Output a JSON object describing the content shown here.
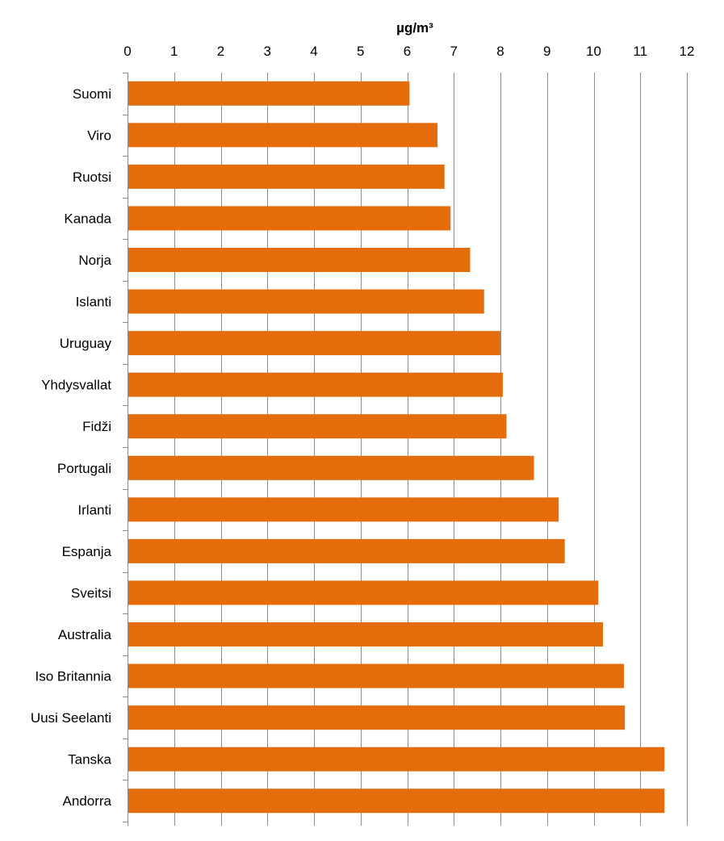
{
  "chart_data": {
    "type": "bar",
    "orientation": "horizontal",
    "xlabel": "µg/m³",
    "xlabel_position": "top",
    "xlim": [
      0,
      12
    ],
    "xticks": [
      "0",
      "1",
      "2",
      "3",
      "4",
      "5",
      "6",
      "7",
      "8",
      "9",
      "10",
      "11",
      "12"
    ],
    "grid": true,
    "bar_color": "#e46c0a",
    "categories": [
      "Suomi",
      "Viro",
      "Ruotsi",
      "Kanada",
      "Norja",
      "Islanti",
      "Uruguay",
      "Yhdysvallat",
      "Fidži",
      "Portugali",
      "Irlanti",
      "Espanja",
      "Sveitsi",
      "Australia",
      "Iso Britannia",
      "Uusi Seelanti",
      "Tanska",
      "Andorra"
    ],
    "values": [
      6.05,
      6.65,
      6.8,
      6.93,
      7.35,
      7.65,
      8.0,
      8.05,
      8.13,
      8.72,
      9.25,
      9.38,
      10.1,
      10.2,
      10.65,
      10.67,
      11.52,
      11.52
    ]
  }
}
